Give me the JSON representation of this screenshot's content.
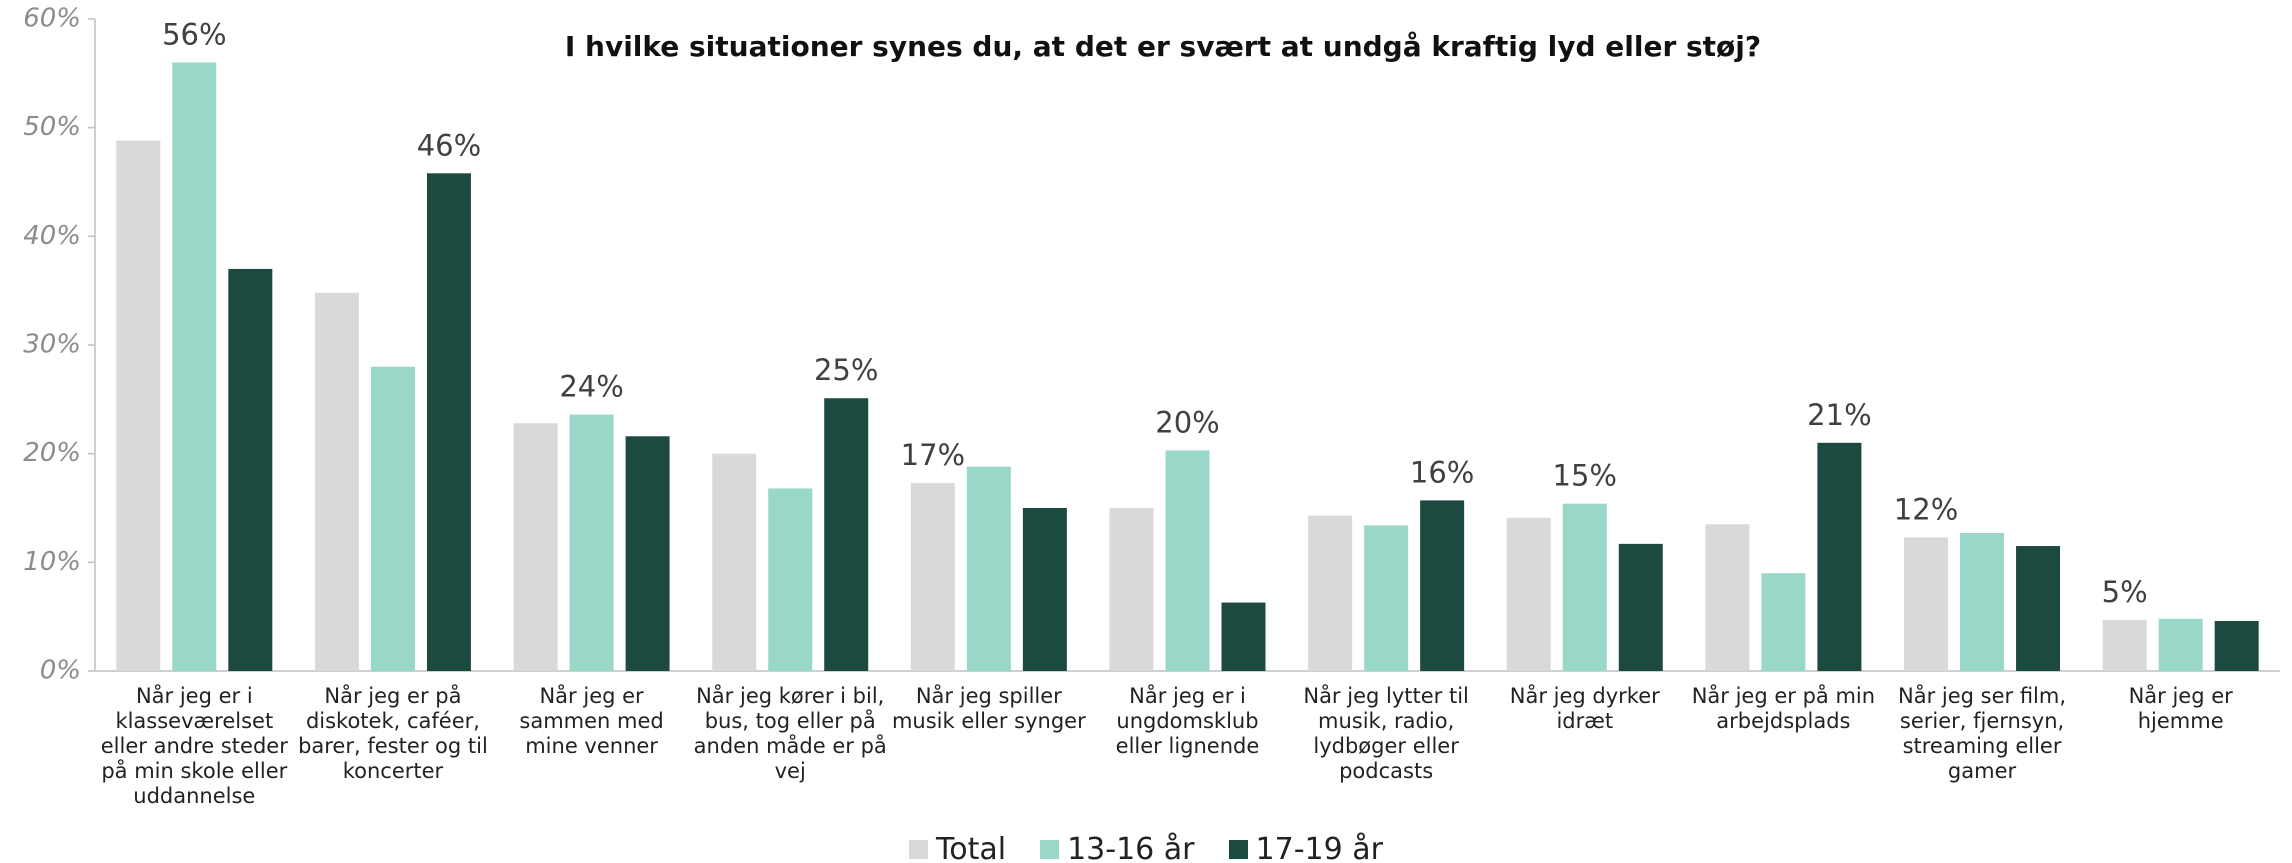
{
  "chart_data": {
    "type": "bar",
    "title": "I hvilke situationer synes du, at det er svært at undgå kraftig lyd eller støj?",
    "categories": [
      "Når jeg er i klasseværelset eller andre steder på min skole eller uddannelse",
      "Når jeg er på diskotek, caféer, barer, fester og til koncerter",
      "Når jeg er sammen med mine venner",
      "Når jeg kører i bil, bus, tog eller på anden måde er på vej",
      "Når jeg spiller musik eller synger",
      "Når jeg er i ungdomsklub eller lignende",
      "Når jeg lytter til musik, radio, lydbøger eller podcasts",
      "Når jeg dyrker idræt",
      "Når jeg er på min arbejdsplads",
      "Når jeg ser film, serier, fjernsyn, streaming eller gamer",
      "Når jeg er hjemme"
    ],
    "series": [
      {
        "name": "Total",
        "color": "#d9d9d9",
        "values": [
          48.8,
          34.8,
          22.8,
          20.0,
          17.3,
          15.0,
          14.3,
          14.1,
          13.5,
          12.3,
          4.7
        ],
        "value_labels": [
          null,
          null,
          null,
          null,
          "17%",
          null,
          null,
          null,
          null,
          "12%",
          "5%"
        ]
      },
      {
        "name": "13-16 år",
        "color": "#99d8c9",
        "values": [
          56.0,
          28.0,
          23.6,
          16.8,
          18.8,
          20.3,
          13.4,
          15.4,
          9.0,
          12.7,
          4.8
        ],
        "value_labels": [
          "56%",
          null,
          "24%",
          null,
          null,
          "20%",
          null,
          "15%",
          null,
          null,
          null
        ]
      },
      {
        "name": "17-19 år",
        "color": "#1d4a40",
        "values": [
          37.0,
          45.8,
          21.6,
          25.1,
          15.0,
          6.3,
          15.7,
          11.7,
          21.0,
          11.5,
          4.6
        ],
        "value_labels": [
          null,
          "46%",
          null,
          "25%",
          null,
          null,
          "16%",
          null,
          "21%",
          null,
          null
        ]
      }
    ],
    "ylim": [
      0,
      60
    ],
    "yticks": [
      {
        "value": 0,
        "label": "0%"
      },
      {
        "value": 10,
        "label": "10%"
      },
      {
        "value": 20,
        "label": "20%"
      },
      {
        "value": 30,
        "label": "30%"
      },
      {
        "value": 40,
        "label": "40%"
      },
      {
        "value": 50,
        "label": "50%"
      },
      {
        "value": 60,
        "label": "60%"
      }
    ],
    "legend": "bottom"
  }
}
